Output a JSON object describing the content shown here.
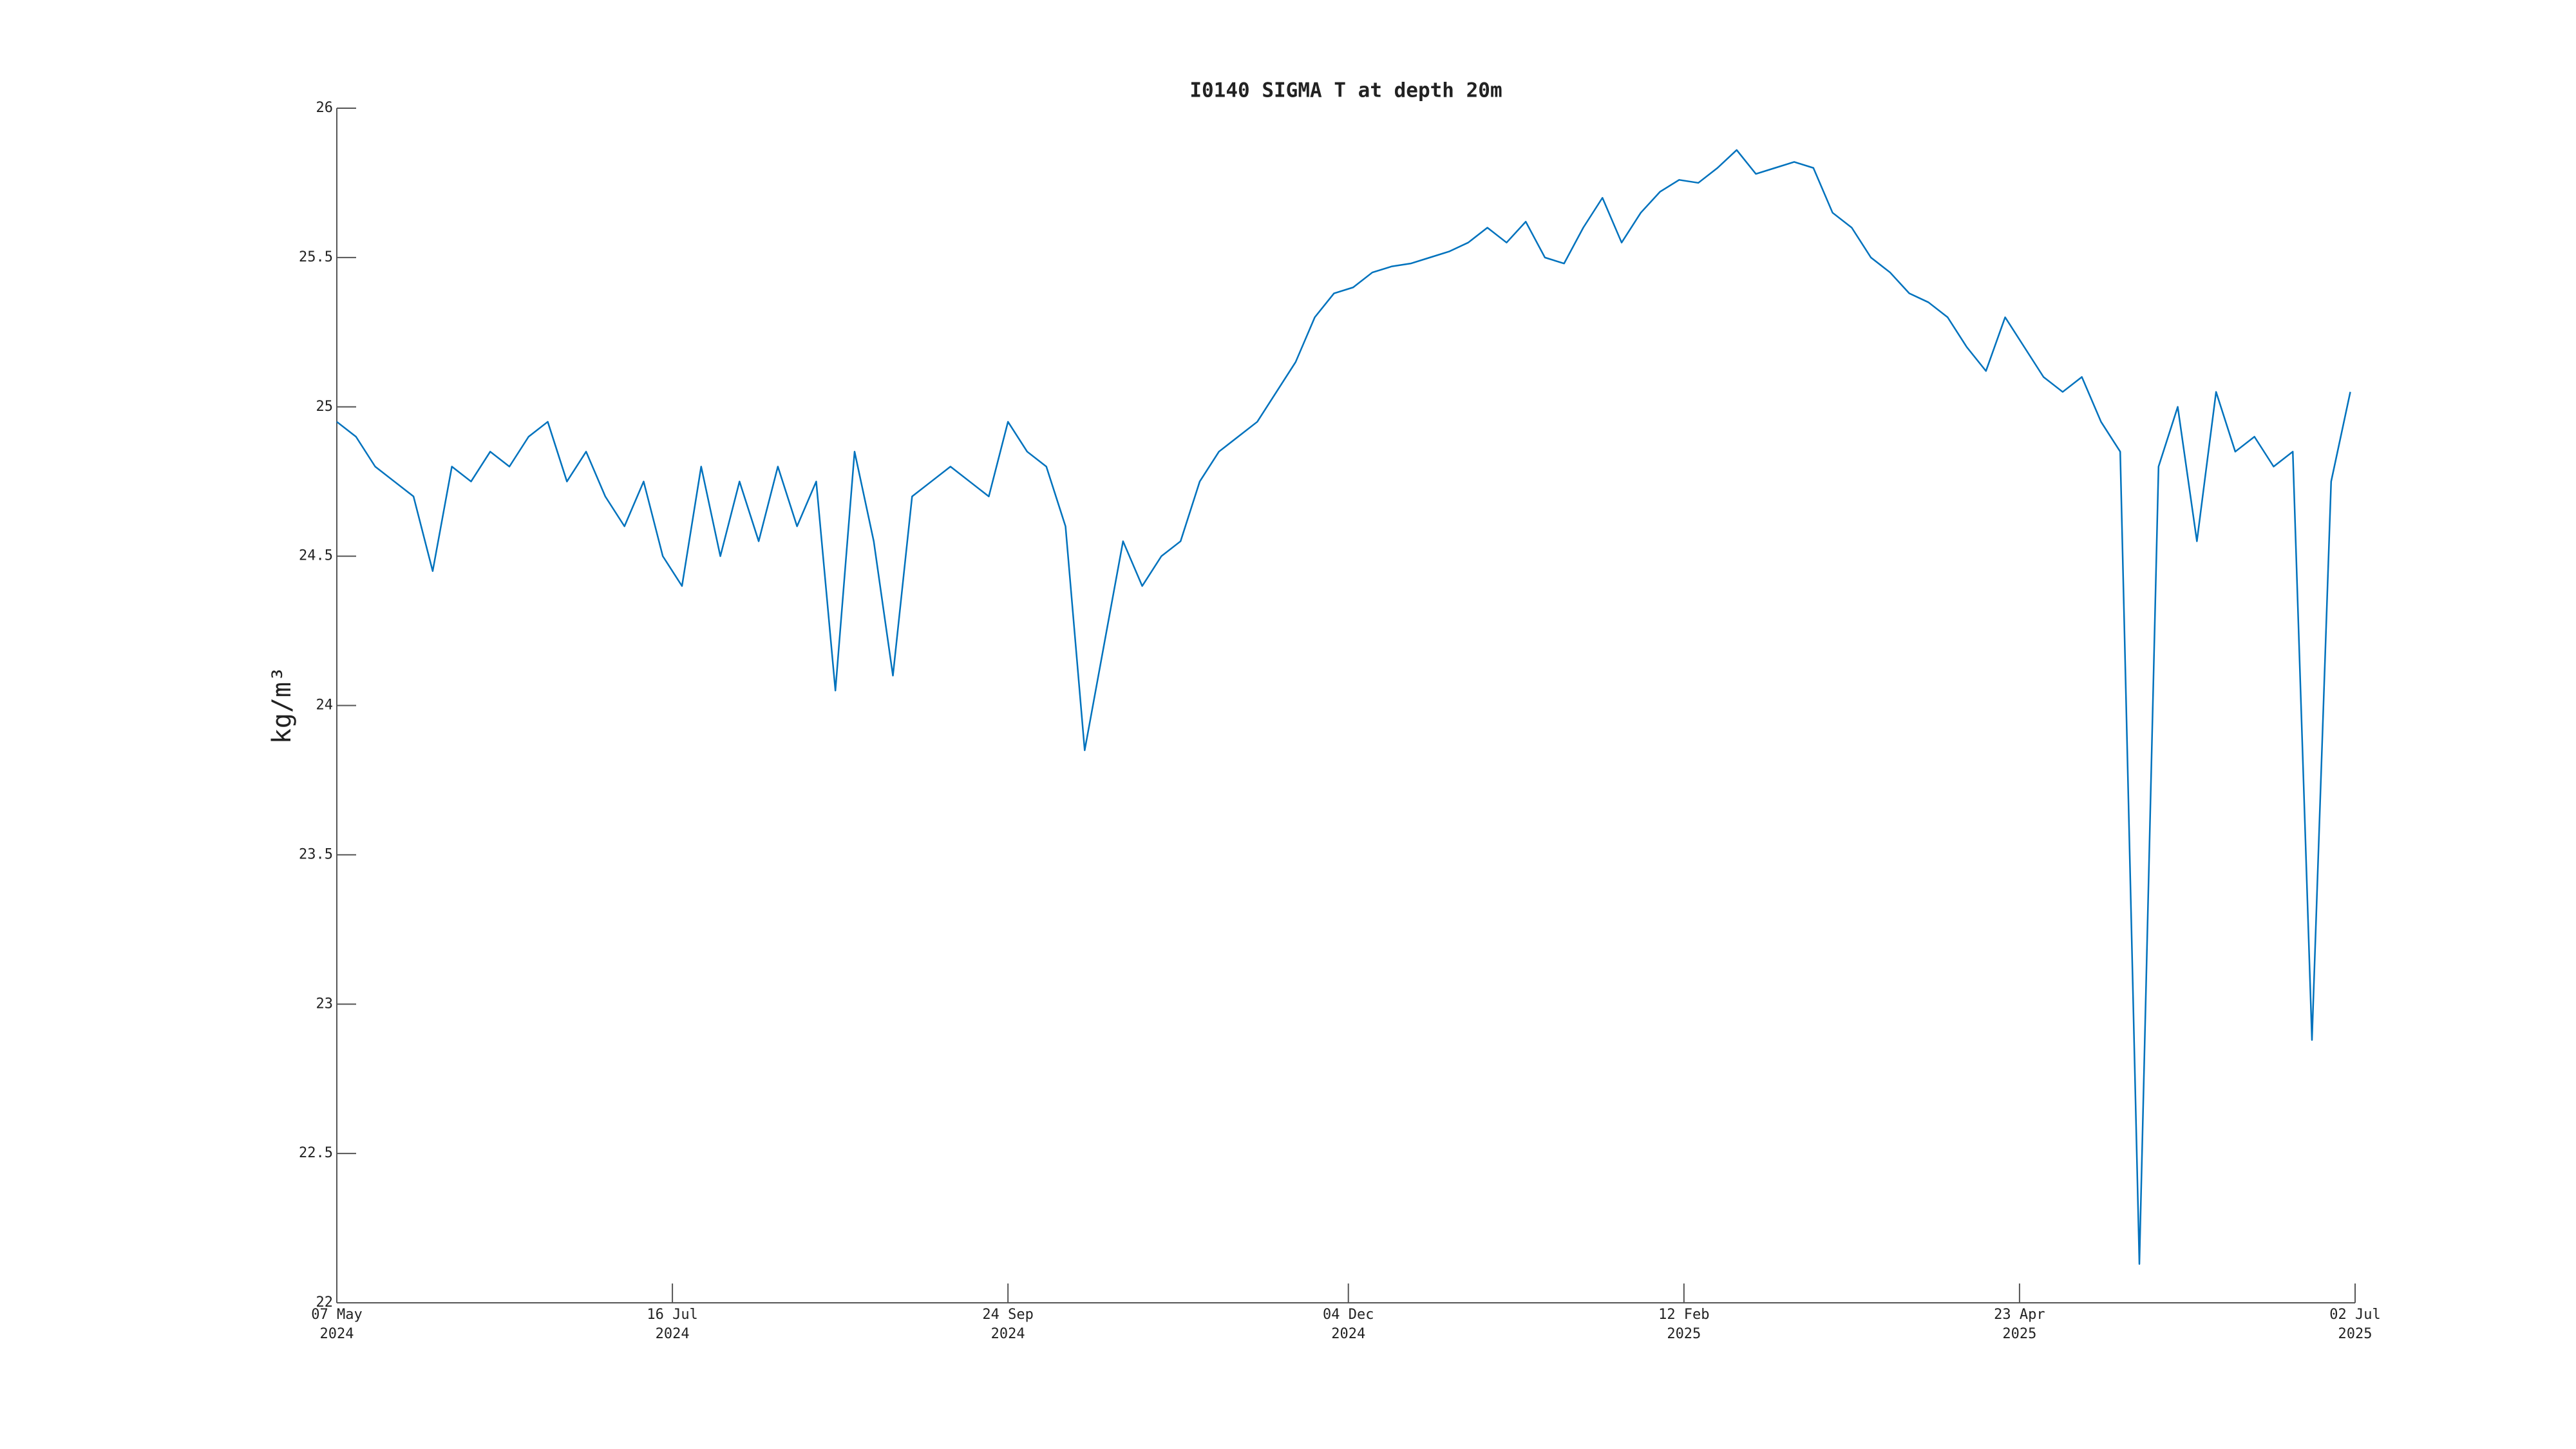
{
  "chart_data": {
    "type": "line",
    "title": "I0140 SIGMA T at depth 20m",
    "y_label": "kg/m³",
    "color": "#0072bd",
    "xlim": [
      "2024-05-07",
      "2025-07-02"
    ],
    "ylim": [
      22,
      26
    ],
    "yticks": [
      22,
      22.5,
      23,
      23.5,
      24,
      24.5,
      25,
      25.5,
      26
    ],
    "xticks": [
      {
        "value": "2024-05-07",
        "label": "07 May\n2024"
      },
      {
        "value": "2024-07-16",
        "label": "16 Jul\n2024"
      },
      {
        "value": "2024-09-24",
        "label": "24 Sep\n2024"
      },
      {
        "value": "2024-12-04",
        "label": "04 Dec\n2024"
      },
      {
        "value": "2025-02-12",
        "label": "12 Feb\n2025"
      },
      {
        "value": "2025-04-23",
        "label": "23 Apr\n2025"
      },
      {
        "value": "2025-07-02",
        "label": "02 Jul\n2025"
      }
    ],
    "x": [
      "2024-05-07",
      "2024-05-11",
      "2024-05-15",
      "2024-05-19",
      "2024-05-23",
      "2024-05-27",
      "2024-05-31",
      "2024-06-04",
      "2024-06-08",
      "2024-06-12",
      "2024-06-16",
      "2024-06-20",
      "2024-06-24",
      "2024-06-28",
      "2024-07-02",
      "2024-07-06",
      "2024-07-10",
      "2024-07-14",
      "2024-07-18",
      "2024-07-22",
      "2024-07-26",
      "2024-07-30",
      "2024-08-03",
      "2024-08-07",
      "2024-08-11",
      "2024-08-15",
      "2024-08-19",
      "2024-08-23",
      "2024-08-27",
      "2024-08-31",
      "2024-09-04",
      "2024-09-08",
      "2024-09-12",
      "2024-09-16",
      "2024-09-20",
      "2024-09-24",
      "2024-09-28",
      "2024-10-02",
      "2024-10-06",
      "2024-10-10",
      "2024-10-14",
      "2024-10-18",
      "2024-10-22",
      "2024-10-26",
      "2024-10-30",
      "2024-11-03",
      "2024-11-07",
      "2024-11-11",
      "2024-11-15",
      "2024-11-19",
      "2024-11-23",
      "2024-11-27",
      "2024-12-01",
      "2024-12-05",
      "2024-12-09",
      "2024-12-13",
      "2024-12-17",
      "2024-12-21",
      "2024-12-25",
      "2024-12-29",
      "2025-01-02",
      "2025-01-06",
      "2025-01-10",
      "2025-01-14",
      "2025-01-18",
      "2025-01-22",
      "2025-01-26",
      "2025-01-30",
      "2025-02-03",
      "2025-02-07",
      "2025-02-11",
      "2025-02-15",
      "2025-02-19",
      "2025-02-23",
      "2025-02-27",
      "2025-03-03",
      "2025-03-07",
      "2025-03-11",
      "2025-03-15",
      "2025-03-19",
      "2025-03-23",
      "2025-03-27",
      "2025-03-31",
      "2025-04-04",
      "2025-04-08",
      "2025-04-12",
      "2025-04-16",
      "2025-04-20",
      "2025-04-24",
      "2025-04-28",
      "2025-05-02",
      "2025-05-06",
      "2025-05-10",
      "2025-05-14",
      "2025-05-18",
      "2025-05-22",
      "2025-05-26",
      "2025-05-30",
      "2025-06-03",
      "2025-06-07",
      "2025-06-11",
      "2025-06-15",
      "2025-06-19",
      "2025-06-23",
      "2025-06-27",
      "2025-07-01"
    ],
    "values": [
      24.95,
      24.9,
      24.8,
      24.75,
      24.7,
      24.45,
      24.8,
      24.75,
      24.85,
      24.8,
      24.9,
      24.95,
      24.75,
      24.85,
      24.7,
      24.6,
      24.75,
      24.5,
      24.4,
      24.8,
      24.5,
      24.75,
      24.55,
      24.8,
      24.6,
      24.75,
      24.05,
      24.85,
      24.55,
      24.1,
      24.7,
      24.75,
      24.8,
      24.75,
      24.7,
      24.95,
      24.85,
      24.8,
      24.6,
      23.85,
      24.2,
      24.55,
      24.4,
      24.5,
      24.55,
      24.75,
      24.85,
      24.9,
      24.95,
      25.05,
      25.15,
      25.3,
      25.38,
      25.4,
      25.45,
      25.47,
      25.48,
      25.5,
      25.52,
      25.55,
      25.6,
      25.55,
      25.62,
      25.5,
      25.48,
      25.6,
      25.7,
      25.55,
      25.65,
      25.72,
      25.76,
      25.75,
      25.8,
      25.86,
      25.78,
      25.8,
      25.82,
      25.8,
      25.65,
      25.6,
      25.5,
      25.45,
      25.38,
      25.35,
      25.3,
      25.2,
      25.12,
      25.3,
      25.2,
      25.1,
      25.05,
      25.1,
      24.95,
      24.85,
      22.13,
      24.8,
      25.0,
      24.55,
      25.05,
      24.85,
      24.9,
      24.8,
      24.85,
      22.88,
      24.75,
      25.05
    ]
  }
}
